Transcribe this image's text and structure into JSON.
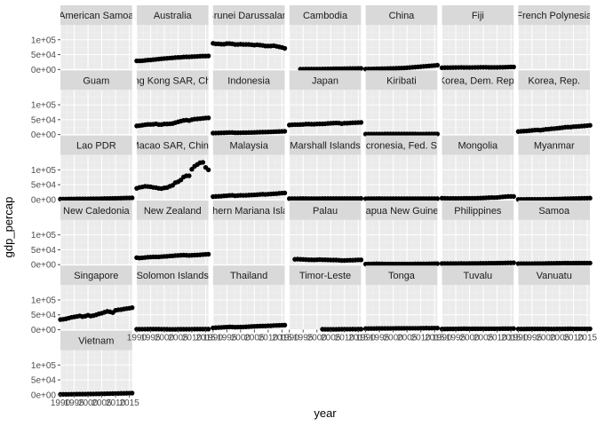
{
  "chart_data": {
    "type": "scatter",
    "facet": "country",
    "xlabel": "year",
    "ylabel": "gdp_percap",
    "xlim": [
      1990,
      2016
    ],
    "ylim": [
      0,
      150000
    ],
    "x_ticks": [
      1990,
      1995,
      2000,
      2005,
      2010,
      2015
    ],
    "x_tick_labels": [
      "1990",
      "1995",
      "2000",
      "2005",
      "2010",
      "2015"
    ],
    "y_ticks": [
      0,
      50000,
      100000
    ],
    "y_tick_labels": [
      "0e+00",
      "5e+04",
      "1e+05"
    ],
    "grid": true,
    "colors": {
      "panel_bg": "#EBEBEB",
      "strip_bg": "#D9D9D9",
      "grid_major": "#FFFFFF",
      "grid_minor": "#F3F3F3",
      "point": "#000000",
      "tick": "#4D4D4D"
    },
    "years": [
      1990,
      1991,
      1992,
      1993,
      1994,
      1995,
      1996,
      1997,
      1998,
      1999,
      2000,
      2001,
      2002,
      2003,
      2004,
      2005,
      2006,
      2007,
      2008,
      2009,
      2010,
      2011,
      2012,
      2013,
      2014,
      2015,
      2016
    ],
    "panels": [
      {
        "country": "American Samoa",
        "values": []
      },
      {
        "country": "Australia",
        "values": [
          29000,
          29000,
          29500,
          30500,
          31500,
          32000,
          33000,
          34000,
          35000,
          36000,
          37000,
          37500,
          38500,
          39000,
          40000,
          40500,
          41000,
          42000,
          42500,
          42500,
          43000,
          43500,
          44000,
          44500,
          45000,
          45000,
          45500
        ]
      },
      {
        "country": "Brunei Darussalam",
        "values": [
          88000,
          86000,
          86000,
          85000,
          85000,
          87000,
          87000,
          86000,
          84000,
          84000,
          85000,
          84000,
          84000,
          84000,
          83000,
          82000,
          83000,
          82000,
          81000,
          79000,
          79000,
          79000,
          80000,
          78000,
          76000,
          74000,
          71000
        ]
      },
      {
        "country": "Cambodia",
        "values": [
          null,
          null,
          null,
          null,
          1100,
          1200,
          1300,
          1300,
          1300,
          1400,
          1500,
          1600,
          1700,
          1800,
          2000,
          2200,
          2400,
          2600,
          2700,
          2600,
          2800,
          2900,
          3100,
          3300,
          3400,
          3600,
          3700
        ]
      },
      {
        "country": "China",
        "values": [
          1500,
          1700,
          1900,
          2100,
          2400,
          2600,
          2800,
          3000,
          3200,
          3500,
          3700,
          4000,
          4400,
          4800,
          5200,
          5800,
          6500,
          7300,
          8000,
          8700,
          9500,
          10300,
          11000,
          11800,
          12600,
          13400,
          14300
        ]
      },
      {
        "country": "Fiji",
        "values": [
          6000,
          6100,
          6300,
          6400,
          6500,
          6600,
          6800,
          6900,
          6600,
          6800,
          6600,
          6800,
          6900,
          7000,
          7300,
          7300,
          7400,
          7100,
          7100,
          7000,
          7100,
          7300,
          7400,
          7700,
          8100,
          8400,
          8600
        ]
      },
      {
        "country": "French Polynesia",
        "values": []
      },
      {
        "country": "Guam",
        "values": []
      },
      {
        "country": "Hong Kong SAR, China",
        "values": [
          29000,
          30000,
          31500,
          33000,
          34000,
          34000,
          34500,
          36000,
          33500,
          33500,
          35500,
          35500,
          36000,
          37000,
          40000,
          42500,
          45000,
          47500,
          48500,
          47000,
          50000,
          52000,
          52500,
          53500,
          54500,
          55500,
          56000
        ]
      },
      {
        "country": "Indonesia",
        "values": [
          4800,
          5100,
          5300,
          5600,
          5900,
          6300,
          6700,
          6900,
          6000,
          6000,
          6200,
          6300,
          6500,
          6700,
          6900,
          7200,
          7500,
          7800,
          8100,
          8400,
          8700,
          9100,
          9500,
          9900,
          10200,
          10600,
          11000
        ]
      },
      {
        "country": "Japan",
        "values": [
          32000,
          33000,
          33200,
          33300,
          33500,
          34000,
          35000,
          35200,
          34700,
          34600,
          35500,
          35700,
          35700,
          36300,
          37200,
          37800,
          38300,
          38900,
          38600,
          36500,
          38200,
          38200,
          38800,
          39600,
          39800,
          40400,
          40800
        ]
      },
      {
        "country": "Kiribati",
        "values": [
          1500,
          1500,
          1500,
          1600,
          1600,
          1600,
          1700,
          1800,
          1900,
          1900,
          1900,
          1900,
          1800,
          1800,
          1800,
          1800,
          1800,
          1800,
          1800,
          1700,
          1700,
          1700,
          1800,
          1800,
          1800,
          1900,
          1900
        ]
      },
      {
        "country": "Korea, Dem. Rep.",
        "values": []
      },
      {
        "country": "Korea, Rep.",
        "values": [
          10000,
          11000,
          11500,
          12000,
          13000,
          14000,
          15000,
          15500,
          14500,
          16000,
          17500,
          18000,
          19500,
          20000,
          21000,
          22000,
          23000,
          24500,
          25000,
          25000,
          26500,
          27000,
          27500,
          28500,
          29000,
          30000,
          31000
        ]
      },
      {
        "country": "Lao PDR",
        "values": [
          1800,
          1800,
          1900,
          2000,
          2100,
          2200,
          2300,
          2400,
          2400,
          2500,
          2600,
          2700,
          2800,
          2900,
          3000,
          3200,
          3400,
          3600,
          3800,
          4000,
          4200,
          4500,
          4800,
          5000,
          5300,
          5500,
          5800
        ]
      },
      {
        "country": "Macao SAR, China",
        "values": [
          null,
          null,
          null,
          null,
          null,
          null,
          null,
          null,
          null,
          null,
          null,
          null,
          null,
          null,
          null,
          null,
          null,
          null,
          null,
          null,
          null,
          null,
          null,
          null,
          null,
          null,
          null
        ]
      },
      {
        "country": "Malaysia",
        "values": [
          10000,
          10500,
          11000,
          11500,
          12500,
          13000,
          14000,
          14500,
          13000,
          13500,
          14500,
          14200,
          14500,
          15000,
          15500,
          16000,
          16500,
          17500,
          18000,
          17500,
          18300,
          19000,
          19600,
          20100,
          21000,
          21700,
          22200
        ]
      },
      {
        "country": "Marshall Islands",
        "values": [
          3200,
          3200,
          3300,
          3300,
          3400,
          3500,
          3400,
          3200,
          3200,
          3200,
          3300,
          3300,
          3400,
          3400,
          3400,
          3400,
          3400,
          3500,
          3400,
          3400,
          3500,
          3600,
          3700,
          3700,
          3700,
          3700,
          3800
        ]
      },
      {
        "country": "Micronesia, Fed. Sts.",
        "values": [
          3000,
          3100,
          3200,
          3300,
          3300,
          3400,
          3300,
          3200,
          3200,
          3200,
          3300,
          3300,
          3300,
          3300,
          3200,
          3200,
          3200,
          3200,
          3200,
          3200,
          3300,
          3300,
          3300,
          3200,
          3200,
          3300,
          3300
        ]
      },
      {
        "country": "Mongolia",
        "values": [
          4700,
          4300,
          4000,
          3900,
          3900,
          4000,
          4100,
          4100,
          4200,
          4300,
          4300,
          4400,
          4500,
          4800,
          5200,
          5500,
          5900,
          6400,
          6900,
          6700,
          7100,
          8200,
          9100,
          9900,
          10500,
          10600,
          10600
        ]
      },
      {
        "country": "Myanmar",
        "values": [
          700,
          700,
          700,
          800,
          800,
          900,
          900,
          1000,
          1000,
          1100,
          1200,
          1400,
          1500,
          1700,
          1900,
          2200,
          2500,
          2700,
          3000,
          3200,
          3400,
          3600,
          3900,
          4200,
          4500,
          4800,
          5000
        ]
      },
      {
        "country": "New Caledonia",
        "values": []
      },
      {
        "country": "New Zealand",
        "values": [
          23500,
          22500,
          23000,
          24000,
          25000,
          25500,
          26000,
          26000,
          26000,
          27000,
          27500,
          28000,
          29000,
          29500,
          30500,
          31000,
          31500,
          32000,
          31500,
          31000,
          31500,
          32000,
          32500,
          33000,
          34000,
          34500,
          35000
        ]
      },
      {
        "country": "Northern Mariana Islands",
        "values": []
      },
      {
        "country": "Palau",
        "values": [
          null,
          null,
          18000,
          18500,
          18000,
          17500,
          17000,
          16500,
          16500,
          16000,
          16500,
          17000,
          16500,
          16500,
          16000,
          15500,
          15500,
          15500,
          15000,
          14000,
          14000,
          14500,
          15000,
          15000,
          15500,
          16000,
          16000
        ]
      },
      {
        "country": "Papua New Guinea",
        "values": [
          2000,
          2100,
          2400,
          2700,
          2800,
          2600,
          2600,
          2400,
          2400,
          2400,
          2300,
          2300,
          2200,
          2300,
          2300,
          2300,
          2300,
          2400,
          2500,
          2600,
          2700,
          2700,
          2700,
          2800,
          3100,
          3300,
          3300
        ]
      },
      {
        "country": "Philippines",
        "values": [
          3800,
          3700,
          3600,
          3600,
          3700,
          3800,
          3900,
          4000,
          3900,
          3900,
          4000,
          4000,
          4100,
          4200,
          4400,
          4500,
          4600,
          4800,
          4900,
          4900,
          5100,
          5200,
          5400,
          5700,
          5900,
          6100,
          6400
        ]
      },
      {
        "country": "Samoa",
        "values": [
          3400,
          3300,
          3300,
          3300,
          3300,
          3500,
          3700,
          3800,
          3800,
          3900,
          4100,
          4300,
          4400,
          4600,
          4700,
          4900,
          5000,
          5200,
          5100,
          5000,
          5100,
          5300,
          5300,
          5300,
          5300,
          5300,
          5400
        ]
      },
      {
        "country": "Singapore",
        "values": [
          34000,
          35000,
          36500,
          39000,
          41500,
          43000,
          44500,
          46500,
          44000,
          45500,
          48500,
          46000,
          47500,
          50000,
          53500,
          55500,
          58500,
          61500,
          60000,
          57500,
          65000,
          67000,
          67500,
          69500,
          71000,
          72000,
          74000
        ]
      },
      {
        "country": "Solomon Islands",
        "values": [
          1700,
          1700,
          1800,
          1800,
          1900,
          1900,
          2000,
          2000,
          1900,
          1800,
          1600,
          1500,
          1400,
          1400,
          1400,
          1500,
          1500,
          1600,
          1700,
          1700,
          1800,
          1900,
          2000,
          2000,
          2000,
          2000,
          2100
        ]
      },
      {
        "country": "Thailand",
        "values": [
          6200,
          6700,
          7200,
          7700,
          8300,
          8900,
          9300,
          9200,
          8400,
          8700,
          9000,
          9200,
          9700,
          10300,
          10800,
          11200,
          11700,
          12200,
          12400,
          12300,
          13200,
          13200,
          14100,
          14500,
          14600,
          15000,
          15400
        ]
      },
      {
        "country": "Timor-Leste",
        "values": [
          null,
          null,
          null,
          null,
          null,
          null,
          null,
          null,
          null,
          null,
          null,
          null,
          1500,
          1400,
          1300,
          1300,
          1200,
          1300,
          1500,
          1600,
          1700,
          1800,
          1800,
          1900,
          1800,
          1900,
          1900
        ]
      },
      {
        "country": "Tonga",
        "values": [
          3800,
          3800,
          3900,
          4000,
          4100,
          4100,
          4200,
          4200,
          4200,
          4300,
          4400,
          4500,
          4600,
          4700,
          4700,
          4800,
          4800,
          4800,
          4800,
          4800,
          4900,
          5100,
          5200,
          5100,
          5200,
          5400,
          5500
        ]
      },
      {
        "country": "Tuvalu",
        "values": [
          2400,
          2500,
          2600,
          2700,
          2800,
          2900,
          3000,
          3200,
          3400,
          3200,
          3000,
          3100,
          3100,
          3200,
          3100,
          3000,
          3100,
          3100,
          3300,
          3200,
          3100,
          3300,
          3500,
          3600,
          3500,
          3600,
          3800
        ]
      },
      {
        "country": "Vanuatu",
        "values": [
          2400,
          2500,
          2500,
          2600,
          2600,
          2700,
          2700,
          2800,
          2700,
          2700,
          2700,
          2600,
          2500,
          2500,
          2600,
          2700,
          2800,
          2900,
          3000,
          3000,
          2900,
          2900,
          2900,
          2900,
          2900,
          2800,
          2900
        ]
      },
      {
        "country": "Vietnam",
        "values": [
          1300,
          1400,
          1500,
          1600,
          1700,
          1900,
          2000,
          2100,
          2200,
          2300,
          2400,
          2500,
          2700,
          2800,
          3000,
          3200,
          3400,
          3700,
          3800,
          4000,
          4200,
          4400,
          4600,
          4800,
          5000,
          5300,
          5600
        ]
      }
    ],
    "macao_values": [
      38000,
      41000,
      42500,
      44500,
      44000,
      43000,
      41000,
      40000,
      38000,
      37000,
      39500,
      40500,
      44500,
      48000,
      57000,
      60000,
      66000,
      76000,
      80000,
      80000,
      102000,
      112000,
      118000,
      124000,
      125000,
      108000,
      100000
    ]
  }
}
